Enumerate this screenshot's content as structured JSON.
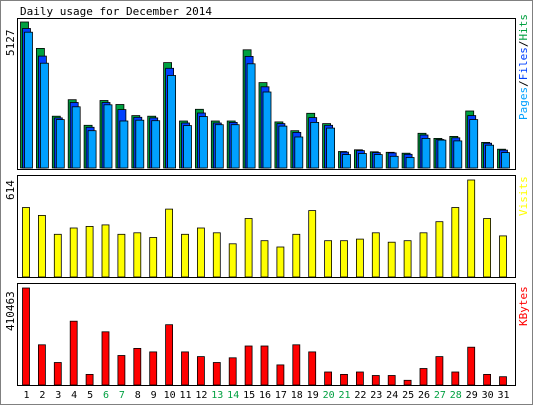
{
  "chart_data": [
    {
      "type": "bar",
      "title": "Daily usage for December 2014",
      "ymax_label": "5127",
      "ylim": [
        0,
        5127
      ],
      "legend": [
        {
          "label": "Pages",
          "color": "#00a0ff"
        },
        {
          "label": "Files",
          "color": "#0040ff"
        },
        {
          "label": "Hits",
          "color": "#00a040"
        }
      ],
      "legend_separator": "/",
      "categories": [
        "1",
        "2",
        "3",
        "4",
        "5",
        "6",
        "7",
        "8",
        "9",
        "10",
        "11",
        "12",
        "13",
        "14",
        "15",
        "16",
        "17",
        "18",
        "19",
        "20",
        "21",
        "22",
        "23",
        "24",
        "25",
        "26",
        "27",
        "28",
        "29",
        "30",
        "31"
      ],
      "weekend_days": [
        "6",
        "7",
        "13",
        "14",
        "20",
        "21",
        "27",
        "28"
      ],
      "series": [
        {
          "name": "Hits",
          "color": "#00a040",
          "values": [
            5127,
            4200,
            1820,
            2400,
            1500,
            2370,
            2230,
            1840,
            1820,
            3700,
            1650,
            2060,
            1650,
            1650,
            4150,
            3000,
            1620,
            1310,
            1920,
            1560,
            580,
            640,
            570,
            550,
            520,
            1220,
            1040,
            1110,
            2000,
            900,
            660
          ]
        },
        {
          "name": "Files",
          "color": "#0040ff",
          "values": [
            4900,
            3930,
            1760,
            2300,
            1430,
            2300,
            2050,
            1780,
            1760,
            3500,
            1580,
            1930,
            1580,
            1600,
            3920,
            2850,
            1560,
            1250,
            1770,
            1500,
            560,
            610,
            540,
            530,
            480,
            1160,
            1000,
            1060,
            1840,
            870,
            630
          ]
        },
        {
          "name": "Pages",
          "color": "#00a0ff",
          "values": [
            4770,
            3680,
            1700,
            2150,
            1310,
            2220,
            1650,
            1680,
            1660,
            3250,
            1490,
            1810,
            1520,
            1520,
            3660,
            2670,
            1470,
            1090,
            1600,
            1400,
            470,
            510,
            470,
            410,
            370,
            1040,
            980,
            950,
            1700,
            800,
            540
          ]
        }
      ]
    },
    {
      "type": "bar",
      "ymax_label": "614",
      "ylim": [
        0,
        614
      ],
      "legend": [
        {
          "label": "Visits",
          "color": "#ffff00"
        }
      ],
      "categories": [
        "1",
        "2",
        "3",
        "4",
        "5",
        "6",
        "7",
        "8",
        "9",
        "10",
        "11",
        "12",
        "13",
        "14",
        "15",
        "16",
        "17",
        "18",
        "19",
        "20",
        "21",
        "22",
        "23",
        "24",
        "25",
        "26",
        "27",
        "28",
        "29",
        "30",
        "31"
      ],
      "series": [
        {
          "name": "Visits",
          "color": "#ffff00",
          "values": [
            440,
            390,
            270,
            310,
            320,
            330,
            270,
            280,
            250,
            430,
            270,
            310,
            280,
            210,
            370,
            230,
            190,
            270,
            420,
            230,
            230,
            240,
            280,
            220,
            230,
            280,
            350,
            440,
            614,
            370,
            260
          ]
        }
      ]
    },
    {
      "type": "bar",
      "ymax_label": "410463",
      "ylim": [
        0,
        410463
      ],
      "legend": [
        {
          "label": "KBytes",
          "color": "#ff0000"
        }
      ],
      "categories": [
        "1",
        "2",
        "3",
        "4",
        "5",
        "6",
        "7",
        "8",
        "9",
        "10",
        "11",
        "12",
        "13",
        "14",
        "15",
        "16",
        "17",
        "18",
        "19",
        "20",
        "21",
        "22",
        "23",
        "24",
        "25",
        "26",
        "27",
        "28",
        "29",
        "30",
        "31"
      ],
      "series": [
        {
          "name": "KBytes",
          "color": "#ff0000",
          "values": [
            410463,
            170000,
            95000,
            270000,
            45000,
            225000,
            125000,
            155000,
            140000,
            255000,
            140000,
            120000,
            95000,
            115000,
            165000,
            165000,
            85000,
            170000,
            140000,
            55000,
            45000,
            55000,
            40000,
            40000,
            20000,
            70000,
            120000,
            55000,
            160000,
            45000,
            35000
          ]
        }
      ]
    }
  ]
}
